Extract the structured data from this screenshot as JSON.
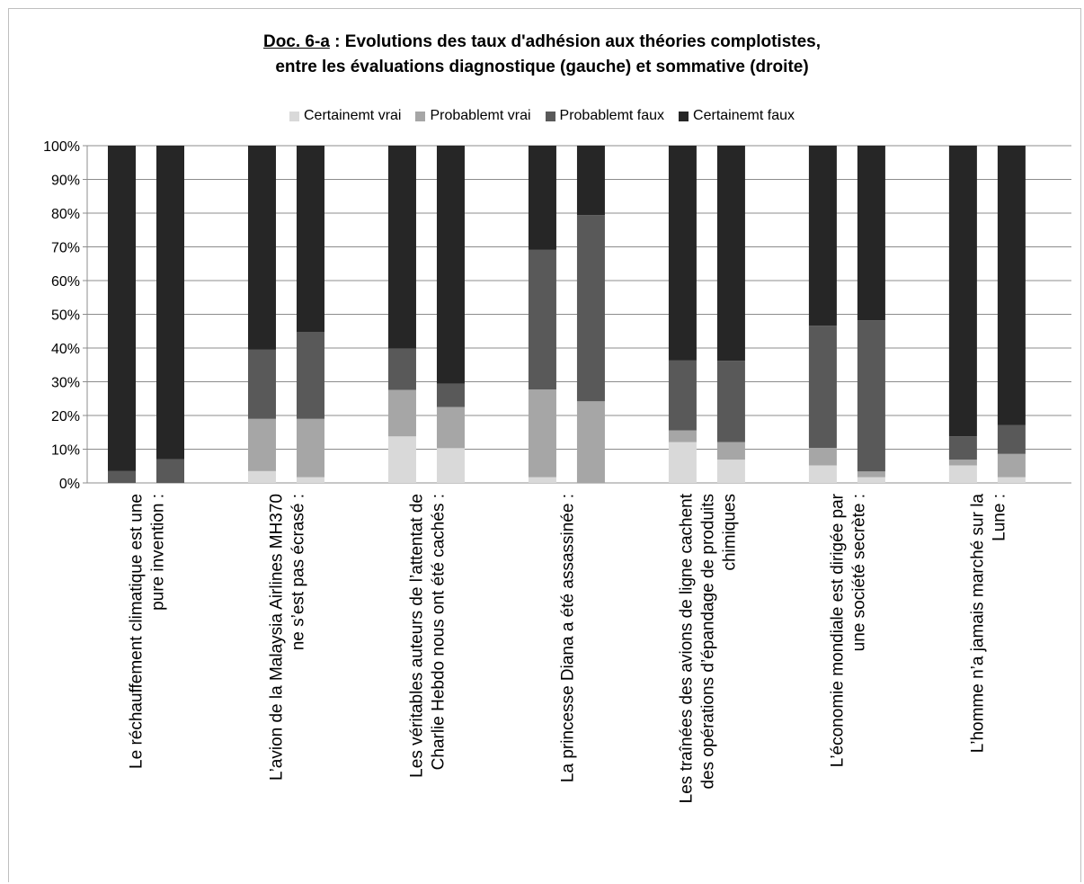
{
  "chart_data": {
    "type": "bar",
    "stacked": true,
    "percent": true,
    "title_prefix": "Doc. 6-a",
    "title_rest": " : Evolutions des taux d'adhésion aux théories complotistes,",
    "title_line2": "entre les évaluations diagnostique (gauche) et sommative (droite)",
    "series_names": [
      "Certainemt vrai",
      "Probablemt vrai",
      "Probablemt faux",
      "Certainemt faux"
    ],
    "series_colors": [
      "#d9d9d9",
      "#a6a6a6",
      "#595959",
      "#262626"
    ],
    "ylim": [
      0,
      100
    ],
    "yticks": [
      "0%",
      "10%",
      "20%",
      "30%",
      "40%",
      "50%",
      "60%",
      "70%",
      "80%",
      "90%",
      "100%"
    ],
    "grid": true,
    "legend_position": "top",
    "categories": [
      {
        "label": [
          "Le réchauffement climatique est une",
          "pure invention :"
        ],
        "bars": [
          [
            0,
            0,
            3.5,
            96.5
          ],
          [
            0,
            0,
            7,
            93
          ]
        ]
      },
      {
        "label": [
          "L’avion de la Malaysia Airlines MH370",
          "ne s’est pas écrasé :"
        ],
        "bars": [
          [
            3.5,
            15.5,
            20.5,
            60.5
          ],
          [
            1.7,
            17.3,
            25.8,
            55.2
          ]
        ]
      },
      {
        "label": [
          "Les véritables auteurs de l’attentat de",
          "Charlie Hebdo nous ont été cachés :"
        ],
        "bars": [
          [
            13.8,
            13.8,
            12.2,
            60.2
          ],
          [
            10.3,
            12.2,
            6.9,
            70.6
          ]
        ]
      },
      {
        "label": [
          "La princesse Diana a été assassinée :"
        ],
        "bars": [
          [
            1.7,
            26,
            41.4,
            30.9
          ],
          [
            0,
            24.2,
            55.2,
            20.6
          ]
        ]
      },
      {
        "label": [
          "Les traînées des avions de ligne cachent",
          "des opérations d’épandage de produits",
          "chimiques"
        ],
        "bars": [
          [
            12.1,
            3.5,
            20.7,
            63.7
          ],
          [
            6.9,
            5.2,
            24.1,
            63.8
          ]
        ]
      },
      {
        "label": [
          "L’économie mondiale est dirigée par",
          "une société secrète :"
        ],
        "bars": [
          [
            5.2,
            5.2,
            36.2,
            53.4
          ],
          [
            1.7,
            1.7,
            44.8,
            51.8
          ]
        ]
      },
      {
        "label": [
          "L’homme n’a jamais marché sur la",
          "Lune :"
        ],
        "bars": [
          [
            5.2,
            1.7,
            6.9,
            86.2
          ],
          [
            1.7,
            6.9,
            8.6,
            82.8
          ]
        ]
      }
    ]
  }
}
